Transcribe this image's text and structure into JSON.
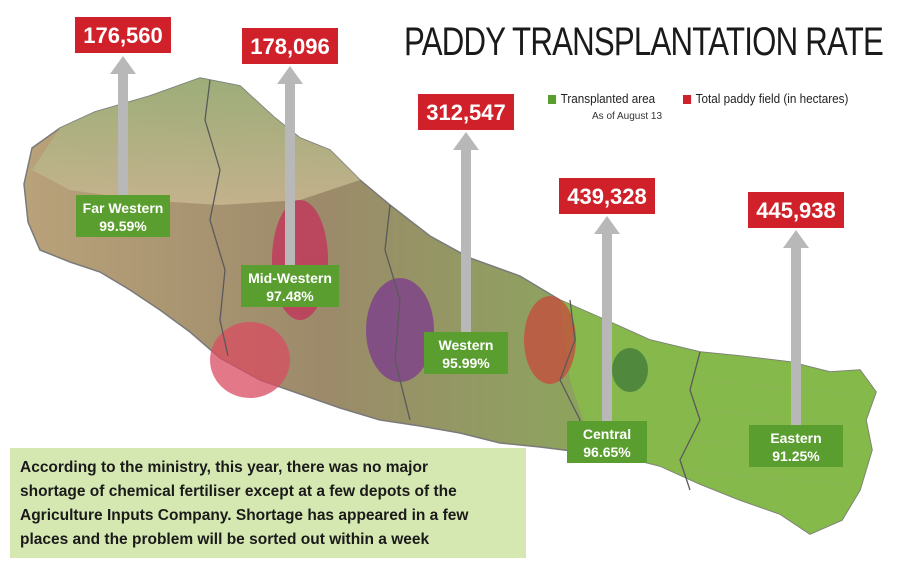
{
  "chart_data": {
    "type": "bar",
    "title": "PADDY TRANSPLANTATION RATE",
    "categories": [
      "Far Western",
      "Mid-Western",
      "Western",
      "Central",
      "Eastern"
    ],
    "series": [
      {
        "name": "Transplanted area",
        "values": [
          "99.59%",
          "97.48%",
          "95.99%",
          "96.65%",
          "91.25%"
        ]
      },
      {
        "name": "Total paddy field (in hectares)",
        "values": [
          176560,
          178096,
          312547,
          439328,
          445938
        ]
      }
    ],
    "total_labels": [
      "176,560",
      "178,096",
      "312,547",
      "439,328",
      "445,938"
    ],
    "legend_note": "As of August 13",
    "legend_position": "top-right",
    "colors": {
      "transplanted": "#5a9e2f",
      "total": "#d0202a",
      "arrow": "#b8b8b8"
    }
  },
  "note": {
    "lines": [
      "According to the ministry, this year, there was no major",
      "shortage of chemical fertiliser except at a few depots of the",
      "Agriculture Inputs Company.  Shortage has appeared in a few",
      "places and the problem will be sorted out within a week"
    ]
  }
}
